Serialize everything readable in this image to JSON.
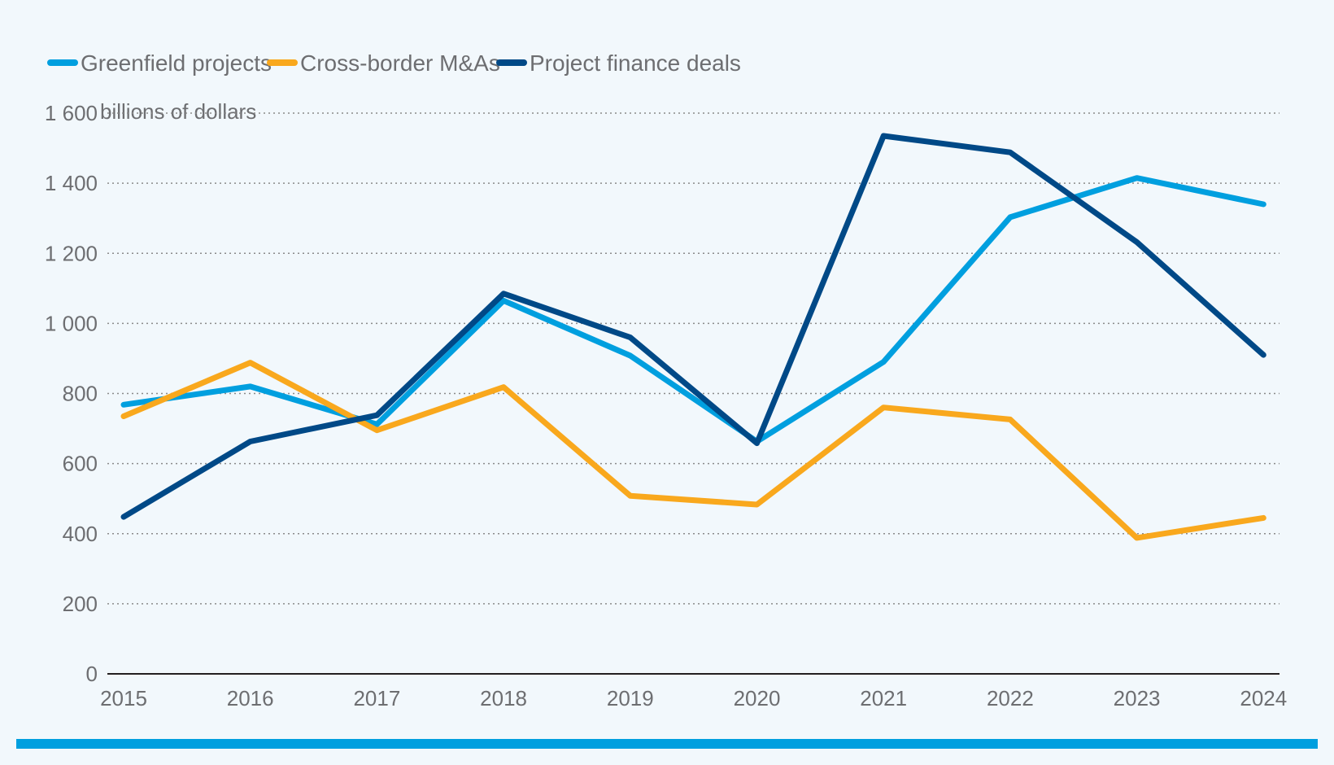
{
  "chart_data": {
    "type": "line",
    "unit_label": "billions of dollars",
    "categories": [
      "2015",
      "2016",
      "2017",
      "2018",
      "2019",
      "2020",
      "2021",
      "2022",
      "2023",
      "2024"
    ],
    "ylim": [
      0,
      1600
    ],
    "yticks": [
      0,
      200,
      400,
      600,
      800,
      1000,
      1200,
      1400,
      1600
    ],
    "ytick_labels": [
      "0",
      "200",
      "400",
      "600",
      "800",
      "1 000",
      "1 200",
      "1 400",
      "1 600"
    ],
    "grid": true,
    "legend_position": "top-left",
    "series": [
      {
        "name": "Greenfield projects",
        "color": "#009fdf",
        "values": [
          768,
          820,
          712,
          1065,
          908,
          663,
          890,
          1303,
          1415,
          1340
        ]
      },
      {
        "name": "Cross-border M&As",
        "color": "#f9a81d",
        "values": [
          735,
          888,
          695,
          818,
          508,
          483,
          760,
          726,
          388,
          445
        ]
      },
      {
        "name": "Project finance deals",
        "color": "#004987",
        "values": [
          448,
          663,
          738,
          1085,
          960,
          658,
          1535,
          1488,
          1232,
          910
        ]
      }
    ]
  },
  "colors": {
    "background": "#f2f8fc",
    "text": "#6d6e71",
    "grid": "#8a8a8a",
    "axis": "#231f20",
    "footer_bar": "#009fdf"
  }
}
